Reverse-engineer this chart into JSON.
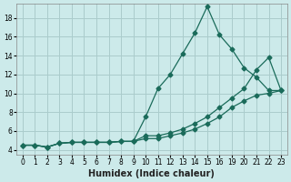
{
  "background_color": "#cceaea",
  "grid_color": "#aacccc",
  "line_color": "#1a6b5a",
  "xlabel": "Humidex (Indice chaleur)",
  "ylim": [
    3.5,
    19.5
  ],
  "yticks": [
    4,
    6,
    8,
    10,
    12,
    14,
    16,
    18
  ],
  "xlabels": [
    "0",
    "1",
    "2",
    "3",
    "4",
    "5",
    "6",
    "7",
    "8",
    "9",
    "10",
    "11",
    "12",
    "13",
    "14",
    "15",
    "16",
    "19",
    "20",
    "21",
    "22",
    "23"
  ],
  "series1_y": [
    4.5,
    4.5,
    4.3,
    4.7,
    4.8,
    4.8,
    4.8,
    4.8,
    4.9,
    4.9,
    7.5,
    10.5,
    12.0,
    14.2,
    16.4,
    19.2,
    16.2,
    14.7,
    12.7,
    11.7,
    10.3,
    10.3
  ],
  "series2_y": [
    4.5,
    4.5,
    4.3,
    4.7,
    4.8,
    4.8,
    4.8,
    4.8,
    4.9,
    4.9,
    5.5,
    5.5,
    5.8,
    6.2,
    6.8,
    7.5,
    8.5,
    9.5,
    10.5,
    12.5,
    13.8,
    10.3
  ],
  "series3_y": [
    4.5,
    4.5,
    4.3,
    4.7,
    4.8,
    4.8,
    4.8,
    4.8,
    4.9,
    4.9,
    5.2,
    5.2,
    5.5,
    5.8,
    6.2,
    6.8,
    7.5,
    8.5,
    9.2,
    9.8,
    10.0,
    10.3
  ]
}
